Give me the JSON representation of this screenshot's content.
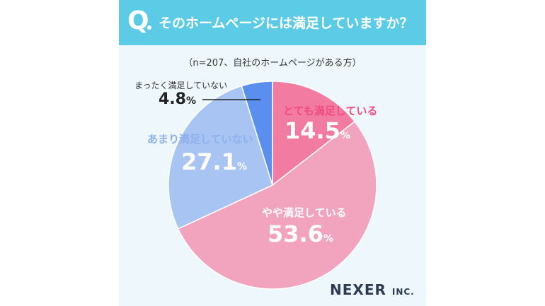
{
  "header": {
    "q_mark": "Q",
    "question": "そのホームページには満足していますか？"
  },
  "subtitle": "（n=207、自社のホームページがある方）",
  "brand": {
    "name": "NEXER",
    "suffix": "INC."
  },
  "colors": {
    "banner": "#5ccbe6",
    "panel": "#eef8fc"
  },
  "chart_data": {
    "type": "pie",
    "slices": [
      {
        "label": "とても満足している",
        "value": 14.5,
        "pct_text": "14.5",
        "color": "#f27ba1"
      },
      {
        "label": "やや満足している",
        "value": 53.6,
        "pct_text": "53.6",
        "color": "#f2a3bd"
      },
      {
        "label": "あまり満足していない",
        "value": 27.1,
        "pct_text": "27.1",
        "color": "#a8c4f2"
      },
      {
        "label": "まったく満足していない",
        "value": 4.8,
        "pct_text": "4.8",
        "color": "#5a8ff0"
      }
    ],
    "unit": "%"
  }
}
